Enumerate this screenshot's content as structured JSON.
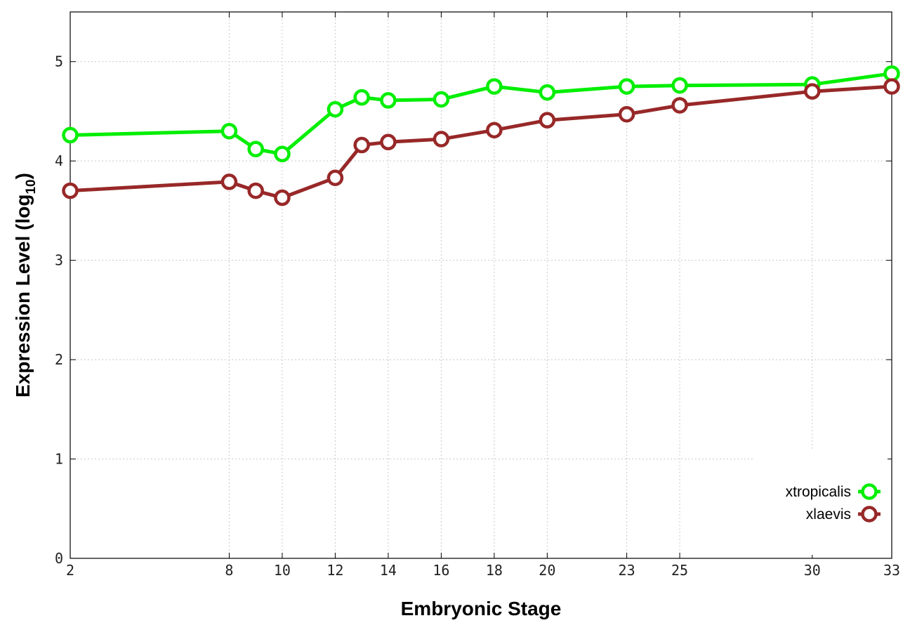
{
  "chart_data": {
    "type": "line",
    "xlabel": "Embryonic Stage",
    "ylabel_main": "Expression Level (log",
    "ylabel_sub": "10",
    "ylabel_close": ")",
    "x": [
      2,
      8,
      9,
      10,
      12,
      13,
      14,
      16,
      18,
      20,
      23,
      25,
      30,
      33
    ],
    "x_ticks": [
      "2",
      "8",
      "10",
      "12",
      "14",
      "16",
      "18",
      "20",
      "23",
      "25",
      "30",
      "33"
    ],
    "y_ticks": [
      "0",
      "1",
      "2",
      "3",
      "4",
      "5"
    ],
    "xlim": [
      2,
      33
    ],
    "ylim": [
      0,
      5.5
    ],
    "grid": true,
    "legend_position": "bottom-right",
    "series": [
      {
        "name": "xtropicalis",
        "color": "#00ee00",
        "values": [
          4.26,
          4.3,
          4.12,
          4.07,
          4.52,
          4.64,
          4.61,
          4.62,
          4.75,
          4.69,
          4.75,
          4.76,
          4.77,
          4.88
        ]
      },
      {
        "name": "xlaevis",
        "color": "#982828",
        "values": [
          3.7,
          3.79,
          3.7,
          3.63,
          3.83,
          4.16,
          4.19,
          4.22,
          4.31,
          4.41,
          4.47,
          4.56,
          4.7,
          4.75
        ]
      }
    ]
  }
}
